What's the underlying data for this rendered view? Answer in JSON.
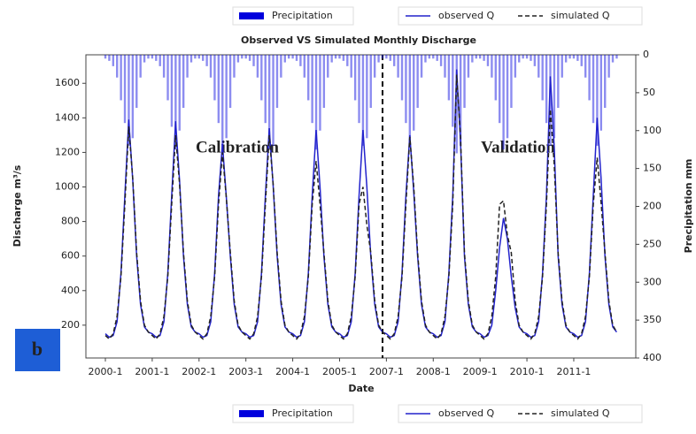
{
  "chart_data": {
    "type": "line",
    "title": "Observed VS Simulated Monthly Discharge",
    "x_label": "Date",
    "y_label": "Discharge m³/s",
    "y2_label": "Precipitation mm",
    "annotations": [
      "Calibration",
      "Validation"
    ],
    "panel_label": "b",
    "categories": [
      "2000-1",
      null,
      null,
      null,
      null,
      null,
      null,
      null,
      null,
      null,
      null,
      null,
      "2001-1",
      null,
      null,
      null,
      null,
      null,
      null,
      null,
      null,
      null,
      null,
      null,
      "2002-1",
      null,
      null,
      null,
      null,
      null,
      null,
      null,
      null,
      null,
      null,
      null,
      "2003-1",
      null,
      null,
      null,
      null,
      null,
      null,
      null,
      null,
      null,
      null,
      null,
      "2004-1",
      null,
      null,
      null,
      null,
      null,
      null,
      null,
      null,
      null,
      null,
      null,
      "2005-1",
      null,
      null,
      null,
      null,
      null,
      null,
      null,
      null,
      null,
      null,
      null,
      "2007-1",
      null,
      null,
      null,
      null,
      null,
      null,
      null,
      null,
      null,
      null,
      null,
      "2008-1",
      null,
      null,
      null,
      null,
      null,
      null,
      null,
      null,
      null,
      null,
      null,
      "2009-1",
      null,
      null,
      null,
      null,
      null,
      null,
      null,
      null,
      null,
      null,
      null,
      "2010-1",
      null,
      null,
      null,
      null,
      null,
      null,
      null,
      null,
      null,
      null,
      null,
      "2011-1",
      null,
      null,
      null,
      null,
      null,
      null,
      null,
      null,
      null,
      null,
      null
    ],
    "series": [
      {
        "name": "Precipitation",
        "color": "#0000dd",
        "kind": "bar",
        "axis": "y2",
        "values": [
          5,
          8,
          15,
          30,
          60,
          90,
          120,
          110,
          70,
          30,
          10,
          5,
          5,
          8,
          15,
          30,
          60,
          95,
          125,
          100,
          70,
          30,
          10,
          5,
          5,
          8,
          15,
          30,
          60,
          90,
          125,
          110,
          70,
          30,
          10,
          5,
          5,
          8,
          15,
          30,
          60,
          90,
          125,
          120,
          70,
          30,
          10,
          5,
          5,
          8,
          15,
          30,
          60,
          90,
          125,
          100,
          70,
          30,
          10,
          5,
          5,
          8,
          15,
          30,
          60,
          90,
          120,
          110,
          70,
          30,
          10,
          5,
          5,
          8,
          15,
          30,
          60,
          90,
          120,
          100,
          70,
          30,
          10,
          5,
          5,
          8,
          15,
          30,
          60,
          95,
          130,
          120,
          70,
          30,
          10,
          5,
          5,
          8,
          15,
          30,
          60,
          90,
          125,
          110,
          70,
          30,
          10,
          5,
          5,
          8,
          15,
          30,
          60,
          90,
          120,
          110,
          70,
          30,
          10,
          5,
          5,
          8,
          15,
          30,
          60,
          90,
          120,
          100,
          70,
          30,
          10,
          5
        ]
      },
      {
        "name": "observed Q",
        "color": "#2222cc",
        "kind": "line",
        "values": [
          150,
          130,
          140,
          220,
          500,
          950,
          1390,
          1040,
          600,
          320,
          190,
          160,
          150,
          130,
          140,
          220,
          500,
          950,
          1380,
          1035,
          600,
          320,
          190,
          160,
          150,
          130,
          140,
          220,
          500,
          950,
          1250,
          940,
          600,
          320,
          190,
          160,
          150,
          130,
          140,
          220,
          500,
          950,
          1340,
          1005,
          600,
          320,
          190,
          160,
          150,
          130,
          140,
          220,
          500,
          950,
          1330,
          1000,
          600,
          320,
          190,
          160,
          150,
          130,
          140,
          220,
          500,
          950,
          1330,
          1000,
          600,
          320,
          190,
          160,
          150,
          130,
          140,
          220,
          500,
          950,
          1300,
          975,
          600,
          320,
          190,
          160,
          150,
          130,
          140,
          220,
          500,
          950,
          1680,
          1260,
          600,
          320,
          190,
          160,
          150,
          130,
          140,
          200,
          400,
          650,
          820,
          700,
          480,
          300,
          190,
          160,
          150,
          130,
          140,
          220,
          500,
          950,
          1640,
          1230,
          600,
          320,
          190,
          160,
          150,
          130,
          140,
          220,
          500,
          950,
          1400,
          1050,
          600,
          320,
          190,
          160
        ]
      },
      {
        "name": "simulated Q",
        "color": "#222222",
        "kind": "line",
        "dash": true,
        "values": [
          140,
          120,
          150,
          250,
          480,
          900,
          1350,
          1050,
          620,
          340,
          200,
          160,
          140,
          120,
          150,
          250,
          480,
          900,
          1300,
          1015,
          620,
          340,
          200,
          160,
          140,
          120,
          150,
          250,
          480,
          900,
          1200,
          935,
          620,
          340,
          200,
          160,
          140,
          120,
          150,
          250,
          480,
          900,
          1300,
          1015,
          620,
          340,
          200,
          160,
          140,
          120,
          150,
          250,
          480,
          900,
          1150,
          900,
          620,
          340,
          200,
          160,
          140,
          120,
          150,
          250,
          480,
          900,
          1000,
          780,
          620,
          340,
          200,
          160,
          140,
          120,
          150,
          250,
          480,
          900,
          1290,
          1005,
          620,
          340,
          200,
          160,
          140,
          120,
          150,
          250,
          480,
          900,
          1650,
          1285,
          620,
          340,
          200,
          160,
          140,
          120,
          150,
          250,
          480,
          900,
          920,
          720,
          620,
          340,
          200,
          160,
          140,
          120,
          150,
          250,
          480,
          900,
          1450,
          1130,
          620,
          340,
          200,
          160,
          140,
          120,
          150,
          250,
          480,
          900,
          1170,
          910,
          620,
          340,
          200,
          160
        ]
      }
    ],
    "ylim": [
      10,
      1765
    ],
    "yticks": [
      200,
      400,
      600,
      800,
      1000,
      1200,
      1400,
      1600
    ],
    "y2lim": [
      400,
      0
    ],
    "y2ticks": [
      0,
      50,
      100,
      150,
      200,
      250,
      300,
      350,
      400
    ]
  }
}
